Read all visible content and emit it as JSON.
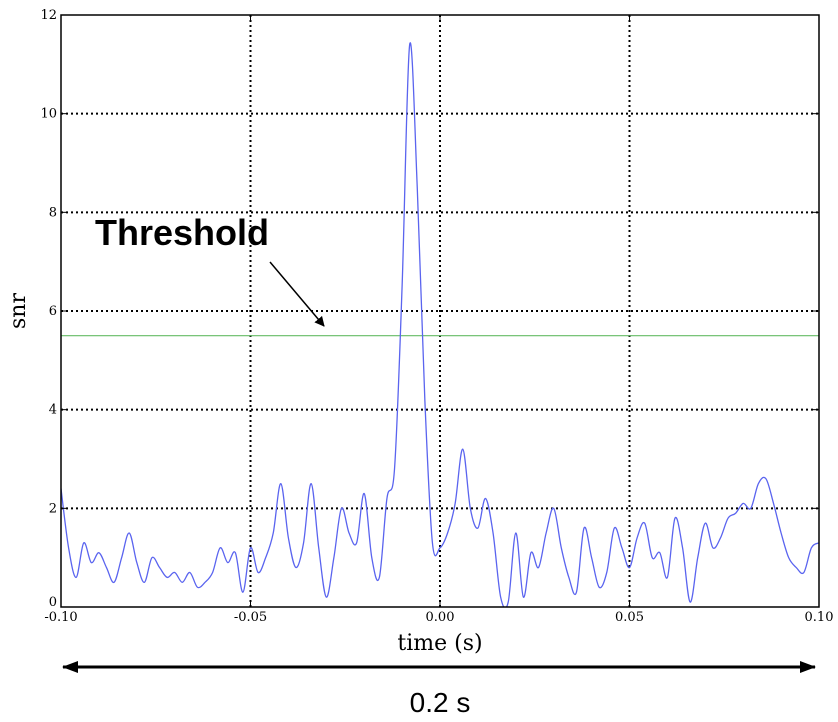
{
  "chart_data": {
    "type": "line",
    "xlabel": "time (s)",
    "ylabel": "snr",
    "xlim": [
      -0.1,
      0.1
    ],
    "ylim": [
      0,
      12
    ],
    "grid": true,
    "x_ticks": [
      -0.1,
      -0.05,
      0.0,
      0.05,
      0.1
    ],
    "x_tick_labels": [
      "-0.10",
      "-0.05",
      "0.00",
      "0.05",
      "0.10"
    ],
    "y_ticks": [
      0,
      2,
      4,
      6,
      8,
      10,
      12
    ],
    "y_tick_labels": [
      "0",
      "2",
      "4",
      "6",
      "8",
      "10",
      "12"
    ],
    "threshold": 5.5,
    "annotation_text": "Threshold",
    "span_label": "0.2 s",
    "colors": {
      "series": "#5a64ef",
      "threshold": "#66bb66",
      "grid": "#000000"
    },
    "series": [
      {
        "x": [
          -0.1,
          -0.098,
          -0.096,
          -0.094,
          -0.092,
          -0.09,
          -0.088,
          -0.086,
          -0.084,
          -0.082,
          -0.08,
          -0.078,
          -0.076,
          -0.074,
          -0.072,
          -0.07,
          -0.068,
          -0.066,
          -0.064,
          -0.062,
          -0.06,
          -0.058,
          -0.056,
          -0.054,
          -0.052,
          -0.05,
          -0.048,
          -0.046,
          -0.044,
          -0.042,
          -0.04,
          -0.038,
          -0.036,
          -0.034,
          -0.032,
          -0.03,
          -0.028,
          -0.026,
          -0.024,
          -0.022,
          -0.02,
          -0.018,
          -0.016,
          -0.014,
          -0.012,
          -0.01,
          -0.008,
          -0.006,
          -0.004,
          -0.002,
          0.0,
          0.002,
          0.004,
          0.006,
          0.008,
          0.01,
          0.012,
          0.014,
          0.016,
          0.018,
          0.02,
          0.022,
          0.024,
          0.026,
          0.028,
          0.03,
          0.032,
          0.034,
          0.036,
          0.038,
          0.04,
          0.042,
          0.044,
          0.046,
          0.048,
          0.05,
          0.052,
          0.054,
          0.056,
          0.058,
          0.06,
          0.062,
          0.064,
          0.066,
          0.068,
          0.07,
          0.072,
          0.074,
          0.076,
          0.078,
          0.08,
          0.082,
          0.084,
          0.086,
          0.088,
          0.09,
          0.092,
          0.094,
          0.096,
          0.098,
          0.1
        ],
        "y": [
          2.4,
          1.2,
          0.6,
          1.3,
          0.9,
          1.1,
          0.8,
          0.5,
          1.0,
          1.5,
          0.9,
          0.5,
          1.0,
          0.8,
          0.6,
          0.7,
          0.5,
          0.7,
          0.4,
          0.5,
          0.7,
          1.2,
          0.9,
          1.1,
          0.3,
          1.2,
          0.7,
          1.0,
          1.5,
          2.5,
          1.4,
          0.8,
          1.3,
          2.5,
          1.2,
          0.2,
          1.0,
          2.0,
          1.5,
          1.3,
          2.3,
          1.0,
          0.6,
          2.2,
          2.8,
          6.5,
          11.4,
          8.5,
          4.2,
          1.3,
          1.2,
          1.5,
          2.1,
          3.2,
          2.0,
          1.6,
          2.2,
          1.5,
          0.2,
          0.1,
          1.5,
          0.2,
          1.1,
          0.8,
          1.5,
          2.0,
          1.2,
          0.6,
          0.3,
          1.6,
          1.0,
          0.4,
          0.7,
          1.6,
          1.2,
          0.8,
          1.4,
          1.7,
          1.0,
          1.1,
          0.6,
          1.8,
          1.2,
          0.1,
          1.0,
          1.7,
          1.2,
          1.4,
          1.8,
          1.9,
          2.1,
          2.0,
          2.5,
          2.6,
          2.1,
          1.5,
          1.0,
          0.8,
          0.7,
          1.2,
          1.3
        ]
      }
    ]
  }
}
